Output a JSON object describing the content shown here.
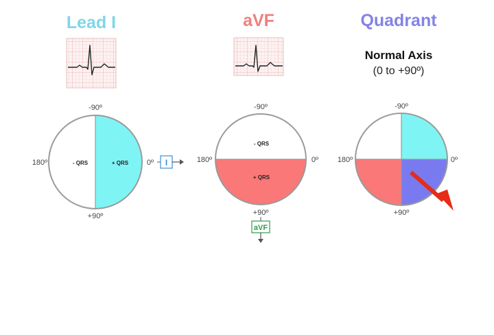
{
  "panels": {
    "lead_i": {
      "title": "Lead I",
      "title_color": "#7fd6e8",
      "label_top": "-90º",
      "label_bottom": "+90º",
      "label_left": "180º",
      "label_right": "0º",
      "neg_label": "- QRS",
      "pos_label": "+ QRS",
      "lead_box_label": "I"
    },
    "avf": {
      "title": "aVF",
      "title_color": "#f07f7f",
      "label_top": "-90º",
      "label_bottom": "+90º",
      "label_left": "180º",
      "label_right": "0º",
      "neg_label": "- QRS",
      "pos_label": "+ QRS",
      "lead_box_label": "aVF"
    },
    "quadrant": {
      "title": "Quadrant",
      "title_color": "#8383e8",
      "subtitle": "Normal Axis",
      "range": "(0 to +90º)",
      "label_top": "-90º",
      "label_bottom": "+90º",
      "label_left": "180º",
      "label_right": "0º"
    }
  },
  "colors": {
    "cyan": "#7ff4f4",
    "salmon": "#fa7878",
    "violet": "#7a7af0",
    "arrow": "#e62c17",
    "ecg_grid": "#f3c9c9",
    "lead_box_i": "#3a8fd6",
    "lead_box_avf": "#2e9a4a"
  },
  "icons": [
    "ecg-strip-icon",
    "right-arrow-icon",
    "down-arrow-icon",
    "axis-arrow-icon"
  ]
}
